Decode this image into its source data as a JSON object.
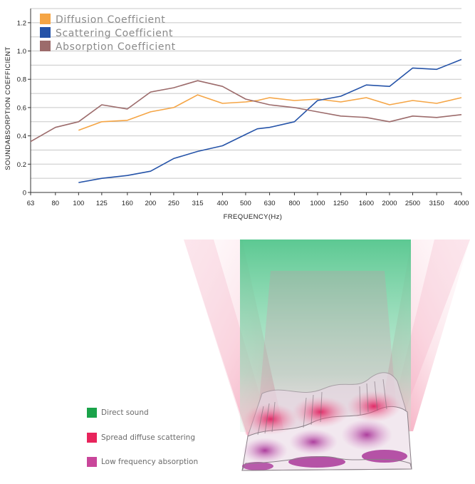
{
  "chart_data": {
    "type": "line",
    "title": "",
    "xlabel": "FREQUENCY(Hz)",
    "ylabel": "SOUNDABSORPTION COEFFICIENT",
    "ylim": [
      0,
      1.3
    ],
    "yticks": [
      0,
      0.2,
      0.4,
      0.6,
      0.8,
      1.0,
      1.2
    ],
    "ytick_labels": [
      "0",
      "0.2",
      "0.4",
      "0.6",
      "0.8",
      "1.0",
      "1.2"
    ],
    "grid": true,
    "legend_position": "top-left",
    "categories": [
      "63",
      "80",
      "100",
      "125",
      "160",
      "200",
      "250",
      "315",
      "400",
      "500",
      "630",
      "800",
      "1000",
      "1250",
      "1600",
      "2000",
      "2500",
      "3150",
      "4000"
    ],
    "series": [
      {
        "name": "Diffusion Coefficient",
        "color": "#f5a545",
        "points": [
          [
            100,
            0.44
          ],
          [
            125,
            0.5
          ],
          [
            160,
            0.51
          ],
          [
            200,
            0.57
          ],
          [
            250,
            0.6
          ],
          [
            315,
            0.69
          ],
          [
            400,
            0.63
          ],
          [
            500,
            0.64
          ],
          [
            560,
            0.65
          ],
          [
            630,
            0.67
          ],
          [
            800,
            0.65
          ],
          [
            1000,
            0.66
          ],
          [
            1250,
            0.64
          ],
          [
            1600,
            0.67
          ],
          [
            2000,
            0.62
          ],
          [
            2500,
            0.65
          ],
          [
            3150,
            0.63
          ],
          [
            4000,
            0.67
          ]
        ]
      },
      {
        "name": "Scattering Coefficient",
        "color": "#2553a8",
        "points": [
          [
            100,
            0.07
          ],
          [
            125,
            0.1
          ],
          [
            160,
            0.12
          ],
          [
            200,
            0.15
          ],
          [
            250,
            0.24
          ],
          [
            315,
            0.29
          ],
          [
            400,
            0.33
          ],
          [
            500,
            0.41
          ],
          [
            560,
            0.45
          ],
          [
            630,
            0.46
          ],
          [
            800,
            0.5
          ],
          [
            1000,
            0.65
          ],
          [
            1250,
            0.68
          ],
          [
            1600,
            0.76
          ],
          [
            2000,
            0.75
          ],
          [
            2500,
            0.88
          ],
          [
            3150,
            0.87
          ],
          [
            4000,
            0.94
          ]
        ]
      },
      {
        "name": "Absorption Coefficient",
        "color": "#9c6b6b",
        "points": [
          [
            63,
            0.36
          ],
          [
            80,
            0.46
          ],
          [
            100,
            0.5
          ],
          [
            125,
            0.62
          ],
          [
            160,
            0.59
          ],
          [
            200,
            0.71
          ],
          [
            250,
            0.74
          ],
          [
            315,
            0.79
          ],
          [
            400,
            0.75
          ],
          [
            500,
            0.66
          ],
          [
            630,
            0.62
          ],
          [
            800,
            0.6
          ],
          [
            1000,
            0.57
          ],
          [
            1250,
            0.54
          ],
          [
            1600,
            0.53
          ],
          [
            2000,
            0.5
          ],
          [
            2500,
            0.54
          ],
          [
            3150,
            0.53
          ],
          [
            4000,
            0.55
          ]
        ]
      }
    ]
  },
  "illustration": {
    "legend": [
      {
        "label": "Direct sound",
        "color": "#1aa34a"
      },
      {
        "label": "Spread diffuse scattering",
        "color": "#e8245c"
      },
      {
        "label": "Low frequency absorption",
        "color": "#c9469a"
      }
    ]
  }
}
